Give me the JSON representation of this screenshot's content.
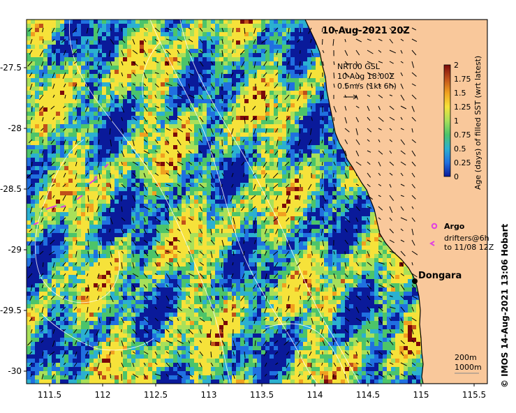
{
  "title": "10-Aug-2021 20Z",
  "y_ticks": [
    "-27.5",
    "-28",
    "-28.5",
    "-29",
    "-29.5",
    "-30"
  ],
  "x_ticks": [
    "111.5",
    "112",
    "112.5",
    "113",
    "113.5",
    "114",
    "114.5",
    "115",
    "115.5"
  ],
  "current_legend": {
    "line1": "NRT00 GSL",
    "line2": "10-Aug 18:00Z",
    "line3": "0.5m/s (1kt 6h)"
  },
  "colorbar": {
    "label": "Age (days) of filled SST (wrt latest)",
    "ticks": [
      "2",
      "1.75",
      "1.5",
      "1.25",
      "1",
      "0.75",
      "0.5",
      "0.25",
      "0"
    ],
    "colors": [
      "#7b0a0a",
      "#c0501a",
      "#f0a020",
      "#f6e23a",
      "#a8e05a",
      "#4cc46a",
      "#2bb0d0",
      "#2070e0",
      "#0a1a9a"
    ]
  },
  "markers_legend": {
    "argo": "Argo",
    "drifters_line1": "drifters@6h",
    "drifters_line2": "to 11/08 12Z"
  },
  "place": "Dongara",
  "scale_legend": {
    "line1": "200m",
    "line2": "1000m"
  },
  "copyright": "© IMOS 14-Aug-2021 13:06 Hobart",
  "colors": {
    "land": "#f9c89b",
    "coast": "#000000",
    "argo": "#e040e0"
  }
}
